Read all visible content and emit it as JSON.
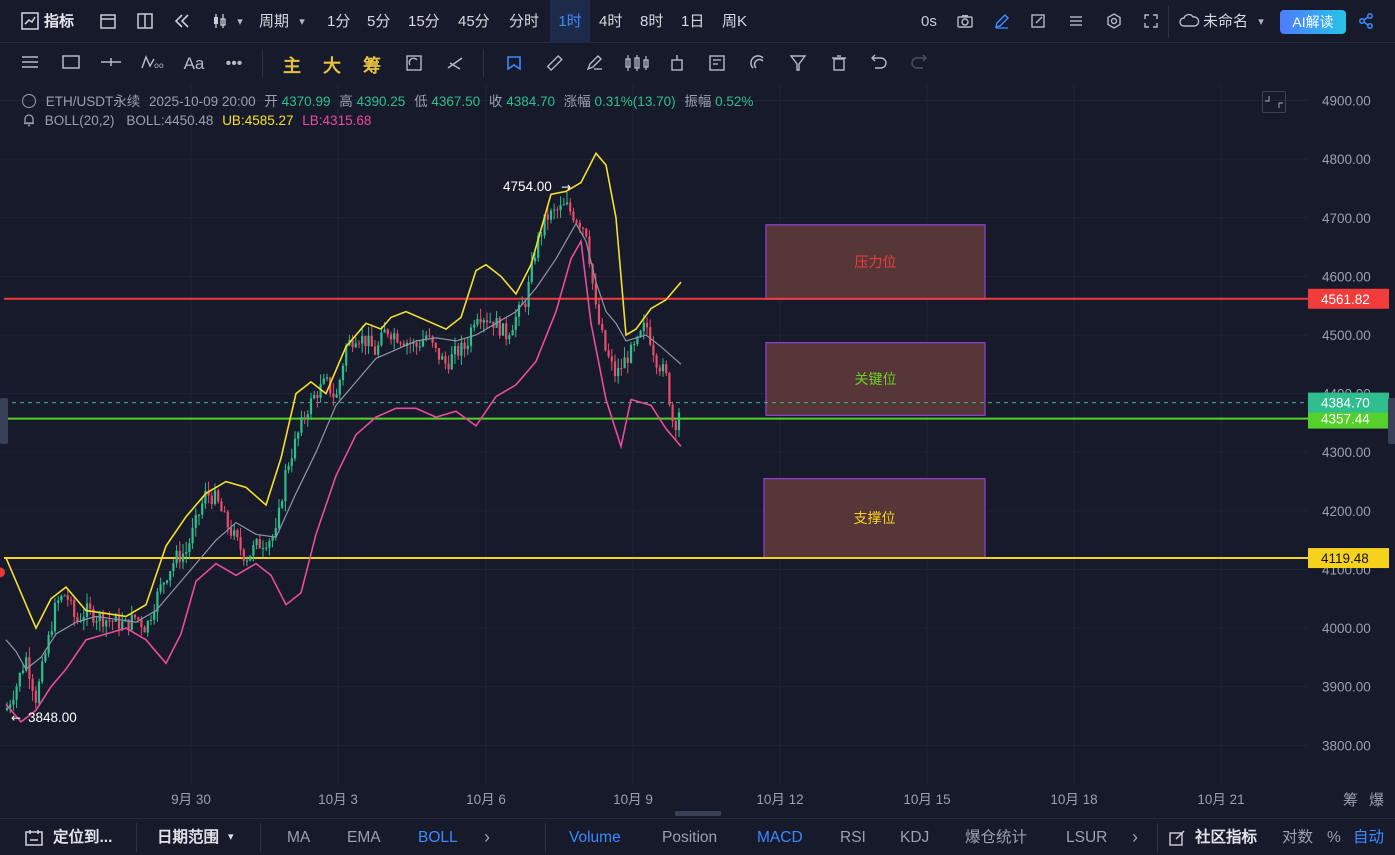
{
  "toolbar": {
    "indicator_label": "指标",
    "period_label": "周期",
    "intervals": [
      "1分",
      "5分",
      "15分",
      "45分",
      "分时",
      "1时",
      "4时",
      "8时",
      "1日",
      "周K"
    ],
    "active_interval": "1时",
    "timer": "0s",
    "layout_name": "未命名",
    "ai_label": "AI解读"
  },
  "drawbar": {
    "main_label": "主",
    "big_label": "大",
    "chip_label": "筹"
  },
  "legend": {
    "symbol": "ETH/USDT永续",
    "datetime": "2025-10-09 20:00",
    "open_label": "开",
    "open": "4370.99",
    "high_label": "高",
    "high": "4390.25",
    "low_label": "低",
    "low": "4367.50",
    "close_label": "收",
    "close": "4384.70",
    "change_label": "涨幅",
    "change": "0.31%(13.70)",
    "amplitude_label": "振幅",
    "amplitude": "0.52%",
    "boll_name": "BOLL(20,2)",
    "boll_mid_label": "BOLL:",
    "boll_mid": "4450.48",
    "boll_ub_label": "UB:",
    "boll_ub": "4585.27",
    "boll_lb_label": "LB:",
    "boll_lb": "4315.68"
  },
  "chart_data": {
    "type": "candlestick",
    "y_ticks": [
      3800,
      3900,
      4000,
      4100,
      4200,
      4300,
      4400,
      4500,
      4600,
      4700,
      4800,
      4900
    ],
    "y_tick_labels": [
      "3800.00",
      "3900.00",
      "4000.00",
      "4100.00",
      "4200.00",
      "4300.00",
      "4400.00",
      "4500.00",
      "4600.00",
      "4700.00",
      "4800.00",
      "4900.00"
    ],
    "ylim": [
      3735,
      4945
    ],
    "x_ticks": [
      "9月 30",
      "10月 3",
      "10月 6",
      "10月 9",
      "10月 12",
      "10月 15",
      "10月 18",
      "10月 21"
    ],
    "high_annotation": {
      "label": "4754.00",
      "value": 4754
    },
    "low_annotation": {
      "label": "3848.00",
      "value": 3848
    },
    "current_price": {
      "label": "4384.70",
      "value": 4384.7,
      "color": "#2fbf8e"
    },
    "horizontal_lines": [
      {
        "label": "4561.82",
        "value": 4561.82,
        "color": "#f23b3b"
      },
      {
        "label": "4357.44",
        "value": 4357.44,
        "color": "#56d02a"
      },
      {
        "label": "4119.48",
        "value": 4119.48,
        "color": "#f7d21c"
      }
    ],
    "zones": [
      {
        "label": "压力位",
        "top": 4688,
        "bottom": 4561,
        "text_color": "#f23b3b"
      },
      {
        "label": "关键位",
        "top": 4487,
        "bottom": 4363,
        "text_color": "#68d02a"
      },
      {
        "label": "支撑位",
        "top": 4255,
        "bottom": 4120,
        "text_color": "#f7d21c"
      }
    ],
    "boll_mid_path": [
      [
        0,
        3980
      ],
      [
        10,
        3960
      ],
      [
        20,
        3930
      ],
      [
        35,
        3950
      ],
      [
        50,
        3990
      ],
      [
        70,
        4010
      ],
      [
        90,
        4020
      ],
      [
        110,
        4015
      ],
      [
        130,
        4010
      ],
      [
        150,
        4030
      ],
      [
        170,
        4070
      ],
      [
        190,
        4110
      ],
      [
        210,
        4150
      ],
      [
        230,
        4180
      ],
      [
        250,
        4160
      ],
      [
        270,
        4155
      ],
      [
        290,
        4230
      ],
      [
        310,
        4300
      ],
      [
        330,
        4380
      ],
      [
        350,
        4420
      ],
      [
        370,
        4460
      ],
      [
        390,
        4475
      ],
      [
        410,
        4490
      ],
      [
        430,
        4495
      ],
      [
        450,
        4490
      ],
      [
        470,
        4500
      ],
      [
        490,
        4520
      ],
      [
        510,
        4540
      ],
      [
        530,
        4580
      ],
      [
        550,
        4630
      ],
      [
        570,
        4690
      ],
      [
        580,
        4660
      ],
      [
        590,
        4590
      ],
      [
        600,
        4540
      ],
      [
        610,
        4520
      ],
      [
        620,
        4490
      ],
      [
        640,
        4500
      ],
      [
        655,
        4480
      ],
      [
        675,
        4450
      ]
    ],
    "boll_ub_path": [
      [
        0,
        4120
      ],
      [
        15,
        4060
      ],
      [
        30,
        4000
      ],
      [
        45,
        4050
      ],
      [
        60,
        4070
      ],
      [
        80,
        4030
      ],
      [
        100,
        4025
      ],
      [
        120,
        4020
      ],
      [
        140,
        4040
      ],
      [
        160,
        4140
      ],
      [
        180,
        4190
      ],
      [
        200,
        4230
      ],
      [
        220,
        4250
      ],
      [
        240,
        4240
      ],
      [
        260,
        4210
      ],
      [
        275,
        4290
      ],
      [
        290,
        4400
      ],
      [
        305,
        4420
      ],
      [
        320,
        4400
      ],
      [
        340,
        4480
      ],
      [
        360,
        4520
      ],
      [
        375,
        4510
      ],
      [
        385,
        4530
      ],
      [
        400,
        4540
      ],
      [
        420,
        4525
      ],
      [
        440,
        4510
      ],
      [
        455,
        4530
      ],
      [
        470,
        4610
      ],
      [
        480,
        4620
      ],
      [
        495,
        4600
      ],
      [
        510,
        4570
      ],
      [
        525,
        4620
      ],
      [
        545,
        4740
      ],
      [
        560,
        4745
      ],
      [
        575,
        4760
      ],
      [
        590,
        4810
      ],
      [
        600,
        4790
      ],
      [
        610,
        4700
      ],
      [
        620,
        4500
      ],
      [
        630,
        4510
      ],
      [
        645,
        4545
      ],
      [
        660,
        4560
      ],
      [
        675,
        4590
      ]
    ],
    "boll_lb_path": [
      [
        0,
        3870
      ],
      [
        15,
        3840
      ],
      [
        30,
        3860
      ],
      [
        45,
        3900
      ],
      [
        60,
        3930
      ],
      [
        80,
        3980
      ],
      [
        100,
        3990
      ],
      [
        120,
        4000
      ],
      [
        140,
        3980
      ],
      [
        160,
        3940
      ],
      [
        175,
        3990
      ],
      [
        190,
        4080
      ],
      [
        210,
        4110
      ],
      [
        230,
        4090
      ],
      [
        250,
        4110
      ],
      [
        265,
        4090
      ],
      [
        280,
        4040
      ],
      [
        295,
        4060
      ],
      [
        310,
        4160
      ],
      [
        330,
        4260
      ],
      [
        350,
        4330
      ],
      [
        370,
        4360
      ],
      [
        390,
        4375
      ],
      [
        410,
        4375
      ],
      [
        430,
        4360
      ],
      [
        450,
        4370
      ],
      [
        470,
        4345
      ],
      [
        490,
        4395
      ],
      [
        510,
        4415
      ],
      [
        530,
        4455
      ],
      [
        550,
        4540
      ],
      [
        565,
        4630
      ],
      [
        575,
        4660
      ],
      [
        585,
        4520
      ],
      [
        600,
        4390
      ],
      [
        615,
        4310
      ],
      [
        625,
        4390
      ],
      [
        645,
        4380
      ],
      [
        660,
        4340
      ],
      [
        675,
        4310
      ]
    ],
    "price_path": [
      [
        0,
        3860
      ],
      [
        10,
        3900
      ],
      [
        20,
        3950
      ],
      [
        30,
        3880
      ],
      [
        40,
        3960
      ],
      [
        50,
        4040
      ],
      [
        60,
        4060
      ],
      [
        70,
        4010
      ],
      [
        80,
        4030
      ],
      [
        90,
        4020
      ],
      [
        100,
        4015
      ],
      [
        110,
        4010
      ],
      [
        120,
        4005
      ],
      [
        130,
        4020
      ],
      [
        140,
        4000
      ],
      [
        150,
        4050
      ],
      [
        160,
        4090
      ],
      [
        170,
        4120
      ],
      [
        180,
        4130
      ],
      [
        190,
        4180
      ],
      [
        200,
        4230
      ],
      [
        210,
        4220
      ],
      [
        220,
        4180
      ],
      [
        230,
        4150
      ],
      [
        240,
        4120
      ],
      [
        250,
        4140
      ],
      [
        260,
        4150
      ],
      [
        270,
        4160
      ],
      [
        280,
        4270
      ],
      [
        290,
        4320
      ],
      [
        300,
        4370
      ],
      [
        310,
        4400
      ],
      [
        320,
        4420
      ],
      [
        330,
        4390
      ],
      [
        340,
        4480
      ],
      [
        350,
        4500
      ],
      [
        360,
        4490
      ],
      [
        370,
        4470
      ],
      [
        380,
        4510
      ],
      [
        390,
        4500
      ],
      [
        400,
        4490
      ],
      [
        410,
        4480
      ],
      [
        420,
        4500
      ],
      [
        430,
        4470
      ],
      [
        440,
        4450
      ],
      [
        450,
        4470
      ],
      [
        460,
        4480
      ],
      [
        470,
        4540
      ],
      [
        480,
        4530
      ],
      [
        490,
        4520
      ],
      [
        500,
        4500
      ],
      [
        510,
        4530
      ],
      [
        520,
        4560
      ],
      [
        530,
        4650
      ],
      [
        540,
        4700
      ],
      [
        550,
        4710
      ],
      [
        560,
        4720
      ],
      [
        570,
        4700
      ],
      [
        580,
        4680
      ],
      [
        590,
        4540
      ],
      [
        600,
        4470
      ],
      [
        610,
        4430
      ],
      [
        620,
        4460
      ],
      [
        630,
        4480
      ],
      [
        640,
        4520
      ],
      [
        650,
        4460
      ],
      [
        660,
        4430
      ],
      [
        668,
        4340
      ],
      [
        675,
        4384.7
      ]
    ],
    "right_axis_labels": [
      "筹",
      "爆"
    ]
  },
  "bottombar": {
    "locate": "定位到...",
    "date_range": "日期范围",
    "main_indicators": [
      "MA",
      "EMA",
      "BOLL"
    ],
    "active_main": "BOLL",
    "sub_indicators": [
      "Volume",
      "Position",
      "MACD",
      "RSI",
      "KDJ",
      "爆仓统计",
      "LSUR"
    ],
    "active_subs": [
      "Volume",
      "MACD"
    ],
    "community": "社区指标",
    "log_label": "对数",
    "pct_label": "%",
    "auto_label": "自动"
  }
}
